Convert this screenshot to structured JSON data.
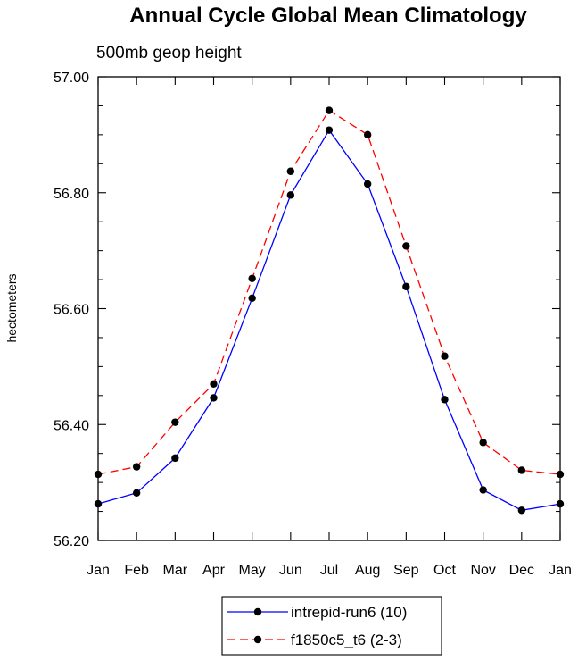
{
  "chart_data": {
    "type": "line",
    "title": "Annual Cycle Global Mean Climatology",
    "subtitle": "500mb geop height",
    "xlabel": "",
    "ylabel": "hectometers",
    "categories": [
      "Jan",
      "Feb",
      "Mar",
      "Apr",
      "May",
      "Jun",
      "Jul",
      "Aug",
      "Sep",
      "Oct",
      "Nov",
      "Dec",
      "Jan"
    ],
    "ylim": [
      56.2,
      57.0
    ],
    "yticks": [
      "56.20",
      "56.40",
      "56.60",
      "56.80",
      "57.00"
    ],
    "grid": false,
    "legend_position": "bottom-center",
    "series": [
      {
        "name": "intrepid-run6 (10)",
        "color": "#0000ff",
        "dash": "solid",
        "marker": "filled-circle",
        "values": [
          56.263,
          56.282,
          56.342,
          56.446,
          56.618,
          56.796,
          56.908,
          56.815,
          56.638,
          56.443,
          56.287,
          56.252,
          56.263
        ]
      },
      {
        "name": "f1850c5_t6 (2-3)",
        "color": "#ff0000",
        "dash": "dashed",
        "marker": "filled-circle",
        "values": [
          56.314,
          56.327,
          56.404,
          56.47,
          56.652,
          56.837,
          56.942,
          56.9,
          56.708,
          56.518,
          56.369,
          56.321,
          56.314
        ]
      }
    ]
  }
}
